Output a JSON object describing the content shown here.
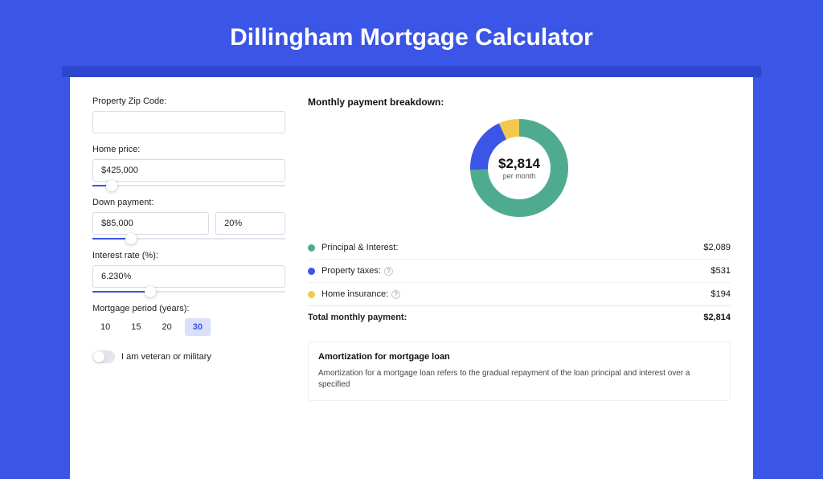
{
  "colors": {
    "page_bg": "#3b55e6",
    "card_bg": "#ffffff",
    "shadow_strip": "#2c46cf",
    "accent": "#3b55e6",
    "period_active_bg": "#d9e0fb",
    "border": "#d8dbe3",
    "divider": "#f0f1f5"
  },
  "page_title": "Dillingham Mortgage Calculator",
  "form": {
    "zip": {
      "label": "Property Zip Code:",
      "value": ""
    },
    "home_price": {
      "label": "Home price:",
      "value": "$425,000",
      "slider_pct": 10
    },
    "down_payment": {
      "label": "Down payment:",
      "value": "$85,000",
      "pct": "20%",
      "slider_pct": 20
    },
    "interest_rate": {
      "label": "Interest rate (%):",
      "value": "6.230%",
      "slider_pct": 30
    },
    "period": {
      "label": "Mortgage period (years):",
      "options": [
        "10",
        "15",
        "20",
        "30"
      ],
      "active": "30"
    },
    "veteran": {
      "label": "I am veteran or military",
      "on": false
    }
  },
  "breakdown": {
    "heading": "Monthly payment breakdown:",
    "donut": {
      "center_amount": "$2,814",
      "center_sub": "per month",
      "segments": [
        {
          "key": "principal_interest",
          "value": 2089,
          "color": "#4fab8f"
        },
        {
          "key": "property_taxes",
          "value": 531,
          "color": "#3b55e6"
        },
        {
          "key": "home_insurance",
          "value": 194,
          "color": "#f2c94c"
        }
      ],
      "stroke_width": 22,
      "radius": 50
    },
    "legend": [
      {
        "label": "Principal & Interest:",
        "value": "$2,089",
        "color": "#4fab8f",
        "info": false
      },
      {
        "label": "Property taxes:",
        "value": "$531",
        "color": "#3b55e6",
        "info": true
      },
      {
        "label": "Home insurance:",
        "value": "$194",
        "color": "#f2c94c",
        "info": true
      }
    ],
    "total": {
      "label": "Total monthly payment:",
      "value": "$2,814"
    }
  },
  "amortization": {
    "title": "Amortization for mortgage loan",
    "text": "Amortization for a mortgage loan refers to the gradual repayment of the loan principal and interest over a specified"
  }
}
